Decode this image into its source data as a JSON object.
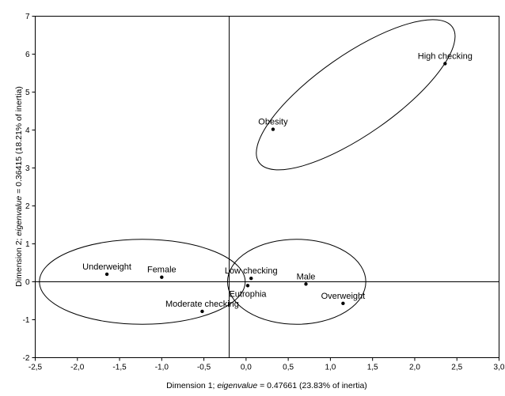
{
  "chart_data": {
    "type": "scatter",
    "title": "",
    "xlabel": {
      "pre": "Dimension 1; ",
      "italic": "eigenvalue",
      "post": " = 0.47661 (23.83% of inertia)"
    },
    "ylabel": {
      "pre": "Dimension 2; ",
      "italic": "eigenvalue",
      "post": " = 0.36415 (18.21% of inertia)"
    },
    "xlim": [
      -2.5,
      3.0
    ],
    "ylim": [
      -2,
      7
    ],
    "x_ticks": [
      -2.5,
      -2.0,
      -1.5,
      -1.0,
      -0.5,
      0.0,
      0.5,
      1.0,
      1.5,
      2.0,
      2.5,
      3.0
    ],
    "x_tick_labels": [
      "-2,5",
      "-2,0",
      "-1,5",
      "-1,0",
      "-0,5",
      "0,0",
      "0,5",
      "1,0",
      "1,5",
      "2,0",
      "2,5",
      "3,0"
    ],
    "y_ticks": [
      -2,
      -1,
      0,
      1,
      2,
      3,
      4,
      5,
      6,
      7
    ],
    "y_tick_labels": [
      "-2",
      "-1",
      "0",
      "1",
      "2",
      "3",
      "4",
      "5",
      "6",
      "7"
    ],
    "grid": false,
    "origin_lines": {
      "x": -0.2,
      "y": 0.0
    },
    "points": [
      {
        "label": "High checking",
        "x": 2.36,
        "y": 5.75,
        "label_pos": "above"
      },
      {
        "label": "Obesity",
        "x": 0.32,
        "y": 4.02,
        "label_pos": "above"
      },
      {
        "label": "Underweight",
        "x": -1.65,
        "y": 0.2,
        "label_pos": "above"
      },
      {
        "label": "Female",
        "x": -1.0,
        "y": 0.12,
        "label_pos": "above"
      },
      {
        "label": "Low checking",
        "x": 0.06,
        "y": 0.09,
        "label_pos": "above"
      },
      {
        "label": "Male",
        "x": 0.71,
        "y": -0.06,
        "label_pos": "above"
      },
      {
        "label": "Eutrophia",
        "x": 0.02,
        "y": -0.1,
        "label_pos": "below"
      },
      {
        "label": "Overweight",
        "x": 1.15,
        "y": -0.57,
        "label_pos": "above"
      },
      {
        "label": "Moderate checking",
        "x": -0.52,
        "y": -0.78,
        "label_pos": "above"
      }
    ],
    "ellipses": [
      {
        "name": "group-high-checking-obesity",
        "cx": 1.3,
        "cy": 4.93,
        "rx": 1.4,
        "ry": 1.05,
        "angle_deg": -35
      },
      {
        "name": "group-underweight-female-moderate",
        "cx": -1.23,
        "cy": 0.0,
        "rx": 1.22,
        "ry": 1.12,
        "angle_deg": 0
      },
      {
        "name": "group-male-overweight-low-eutrophia",
        "cx": 0.6,
        "cy": 0.0,
        "rx": 0.82,
        "ry": 1.12,
        "angle_deg": 0
      }
    ]
  }
}
